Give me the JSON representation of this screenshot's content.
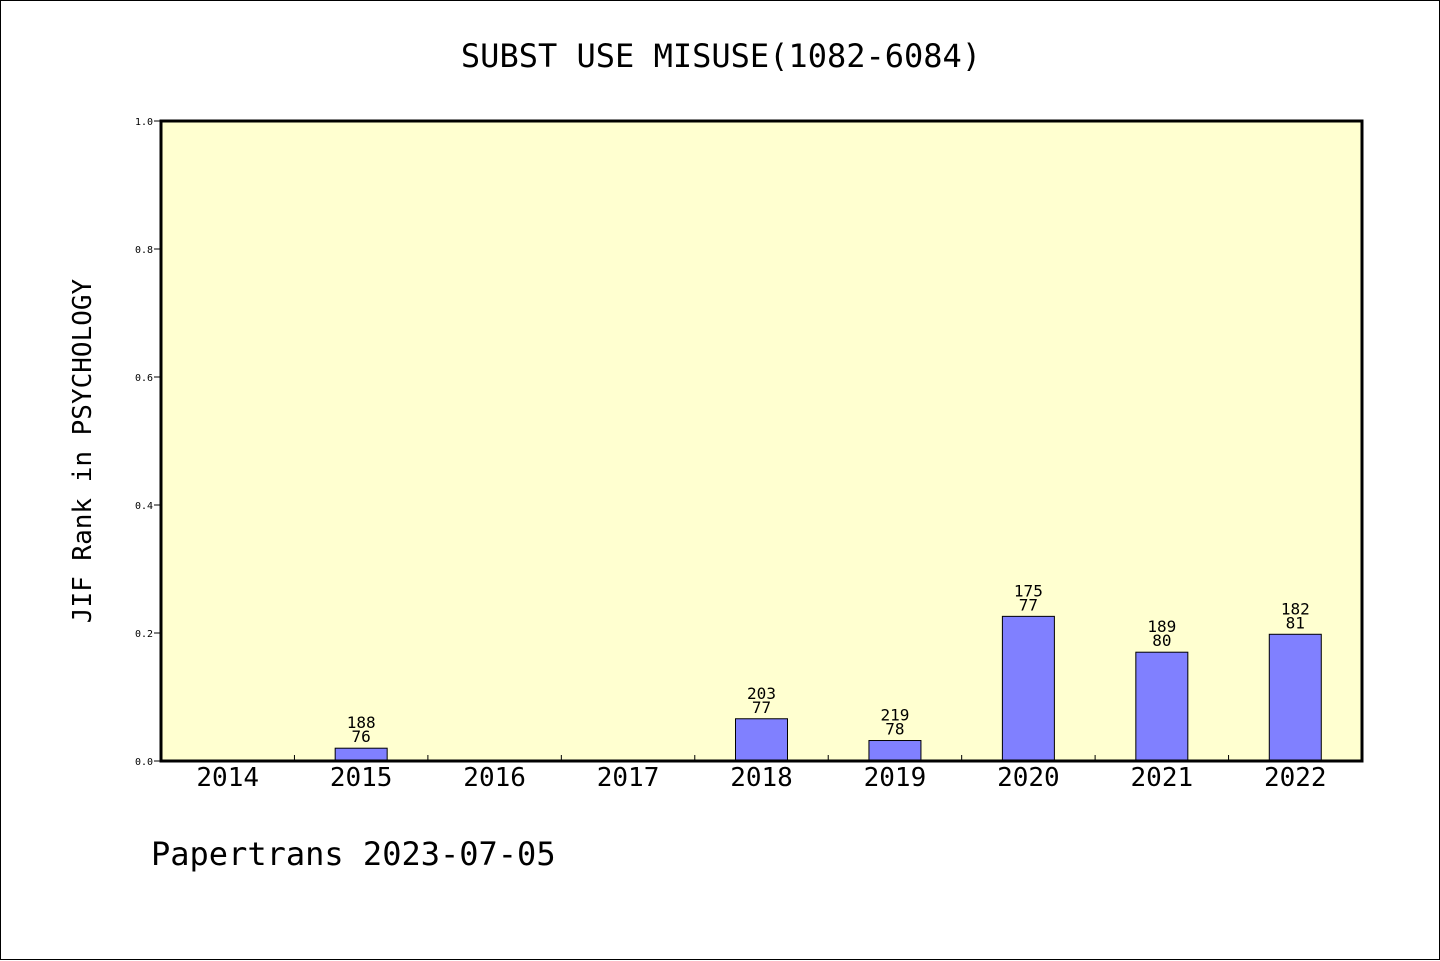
{
  "chart_data": {
    "type": "bar",
    "title": "SUBST USE MISUSE(1082-6084)",
    "xlabel": "",
    "ylabel": "JIF Rank in PSYCHOLOGY",
    "ylim": [
      0,
      1.0
    ],
    "yticks": [
      "0.0",
      "0.2",
      "0.4",
      "0.6",
      "0.8",
      "1.0"
    ],
    "ytick_values": [
      0,
      0.2,
      0.4,
      0.6,
      0.8,
      1.0
    ],
    "categories": [
      "2014",
      "2015",
      "2016",
      "2017",
      "2018",
      "2019",
      "2020",
      "2021",
      "2022"
    ],
    "values": [
      null,
      0.02,
      null,
      null,
      0.066,
      0.032,
      0.226,
      0.17,
      0.198
    ],
    "label_top": [
      null,
      "188",
      null,
      null,
      "203",
      "219",
      "175",
      "189",
      "182"
    ],
    "label_bottom": [
      null,
      "76",
      null,
      null,
      "77",
      "78",
      "77",
      "80",
      "81"
    ],
    "grid": false,
    "plot_background": "#ffffd0",
    "bar_color": "#8080ff"
  },
  "footer": "Papertrans 2023-07-05"
}
